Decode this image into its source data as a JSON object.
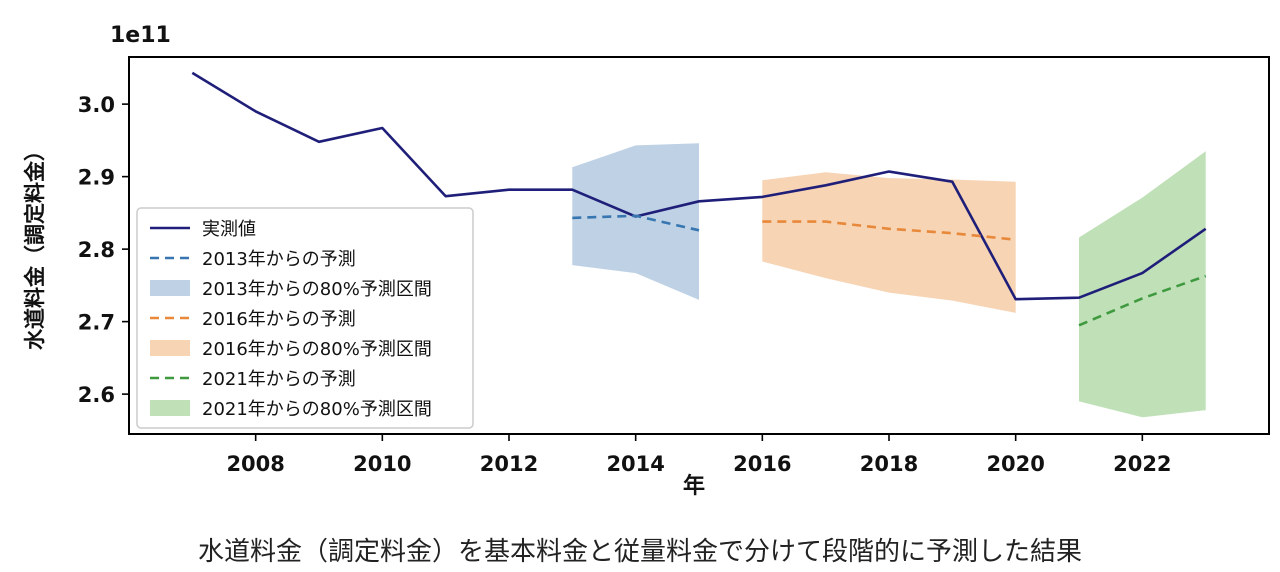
{
  "caption": "水道料金（調定料金）を基本料金と従量料金で分けて段階的に予測した結果",
  "chart_data": {
    "type": "line",
    "title": "",
    "xlabel": "年",
    "ylabel": "水道料金（調定料金）",
    "y_offset_label": "1e11",
    "xlim": [
      2006,
      2024
    ],
    "ylim": [
      2.545,
      3.065
    ],
    "x_ticks": [
      2008,
      2010,
      2012,
      2014,
      2016,
      2018,
      2020,
      2022
    ],
    "y_ticks": [
      2.6,
      2.7,
      2.8,
      2.9,
      3.0
    ],
    "y_tick_labels": [
      "2.6",
      "2.7",
      "2.8",
      "2.9",
      "3.0"
    ],
    "grid": false,
    "legend_position": "lower-left",
    "actual": {
      "name": "実測値",
      "color": "#1f1f7a",
      "x": [
        2007,
        2008,
        2009,
        2010,
        2011,
        2012,
        2013,
        2014,
        2015,
        2016,
        2017,
        2018,
        2019,
        2020,
        2021,
        2022,
        2023
      ],
      "y": [
        3.043,
        2.99,
        2.948,
        2.967,
        2.873,
        2.882,
        2.882,
        2.845,
        2.866,
        2.872,
        2.888,
        2.907,
        2.893,
        2.731,
        2.733,
        2.767,
        2.828
      ]
    },
    "forecasts": [
      {
        "name": "2013年からの予測",
        "interval_name": "2013年からの80%予測区間",
        "color": "#3776b0",
        "band_color": "#b3c9e1",
        "x": [
          2013,
          2014,
          2015
        ],
        "y": [
          2.843,
          2.846,
          2.826
        ],
        "lower": [
          2.778,
          2.767,
          2.73
        ],
        "upper": [
          2.913,
          2.943,
          2.946
        ]
      },
      {
        "name": "2016年からの予測",
        "interval_name": "2016年からの80%予測区間",
        "color": "#e8883a",
        "band_color": "#f6cda7",
        "x": [
          2016,
          2017,
          2018,
          2019,
          2020
        ],
        "y": [
          2.838,
          2.838,
          2.828,
          2.822,
          2.813
        ],
        "lower": [
          2.783,
          2.76,
          2.74,
          2.729,
          2.712
        ],
        "upper": [
          2.895,
          2.906,
          2.898,
          2.896,
          2.893
        ]
      },
      {
        "name": "2021年からの予測",
        "interval_name": "2021年からの80%予測区間",
        "color": "#3f9a3f",
        "band_color": "#b5dbab",
        "x": [
          2021,
          2022,
          2023
        ],
        "y": [
          2.695,
          2.732,
          2.763
        ],
        "lower": [
          2.59,
          2.568,
          2.578
        ],
        "upper": [
          2.816,
          2.871,
          2.935
        ]
      }
    ]
  }
}
